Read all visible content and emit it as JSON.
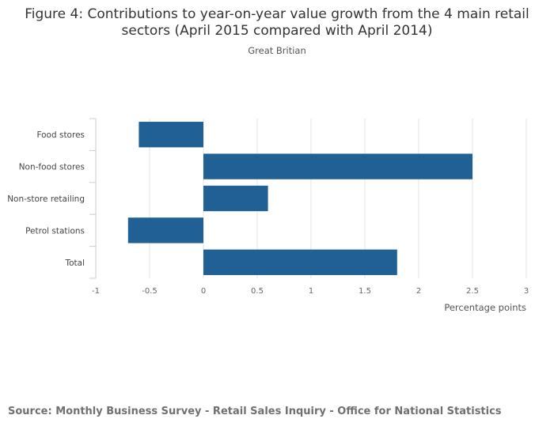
{
  "chart_data": {
    "type": "bar",
    "orientation": "horizontal",
    "title": "Figure 4: Contributions to year-on-year value growth from the 4 main retail sectors (April 2015 compared with April 2014)",
    "subtitle": "Great Britian",
    "categories": [
      "Food stores",
      "Non-food stores",
      "Non-store retailing",
      "Petrol stations",
      "Total"
    ],
    "values": [
      -0.6,
      2.5,
      0.6,
      -0.7,
      1.8
    ],
    "xlabel": "Percentage points",
    "ylabel": "",
    "xlim": [
      -1,
      3
    ],
    "xticks": [
      -1,
      -0.5,
      0,
      0.5,
      1,
      1.5,
      2,
      2.5,
      3
    ],
    "xtick_labels": [
      "-1",
      "-0.5",
      "0",
      "0.5",
      "1",
      "1.5",
      "2",
      "2.5",
      "3"
    ],
    "grid": true,
    "bar_color": "#206095"
  },
  "source": "Source: Monthly Business Survey - Retail Sales Inquiry - Office for National Statistics"
}
